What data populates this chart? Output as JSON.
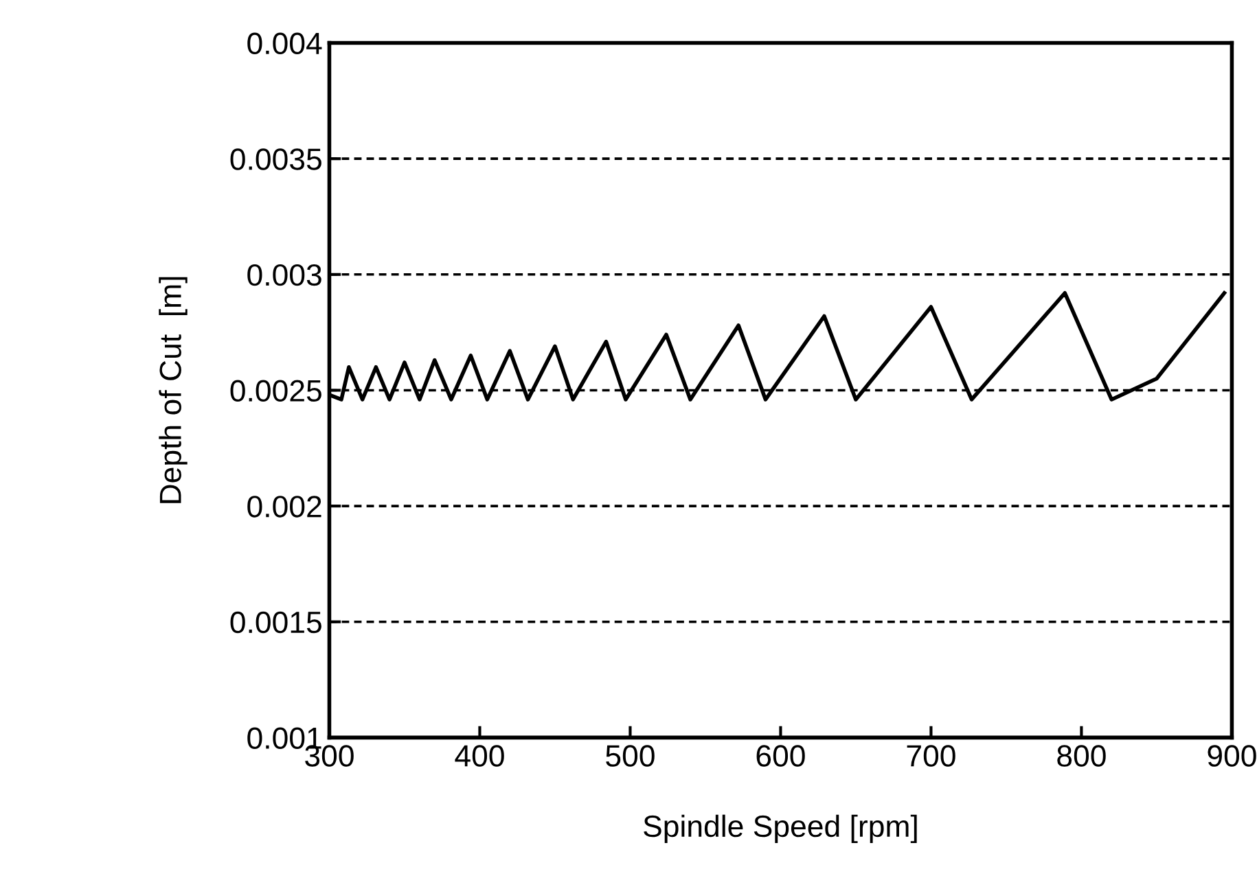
{
  "chart_data": {
    "type": "line",
    "xlabel": "Spindle Speed [rpm]",
    "ylabel": "Depth of Cut  [m]",
    "xlim": [
      300,
      900
    ],
    "ylim": [
      0.001,
      0.004
    ],
    "xticks": [
      300,
      400,
      500,
      600,
      700,
      800,
      900
    ],
    "yticks": [
      0.001,
      0.0015,
      0.002,
      0.0025,
      0.003,
      0.0035,
      0.004
    ],
    "grid": "y",
    "line_style": "solid",
    "marker": "none",
    "series": [
      {
        "color": "#000000",
        "x": [
          300,
          308,
          313,
          322,
          331,
          340,
          350,
          360,
          370,
          381,
          394,
          405,
          420,
          432,
          450,
          462,
          484,
          497,
          524,
          540,
          572,
          590,
          629,
          650,
          700,
          727,
          789,
          820,
          850,
          895
        ],
        "values": [
          0.00248,
          0.00246,
          0.0026,
          0.00246,
          0.0026,
          0.00246,
          0.00262,
          0.00246,
          0.00263,
          0.00246,
          0.00265,
          0.00246,
          0.00267,
          0.00246,
          0.00269,
          0.00246,
          0.00271,
          0.00246,
          0.00274,
          0.00246,
          0.00278,
          0.00246,
          0.00282,
          0.00246,
          0.00286,
          0.00246,
          0.00292,
          0.00246,
          0.00255,
          0.00292
        ]
      }
    ]
  }
}
